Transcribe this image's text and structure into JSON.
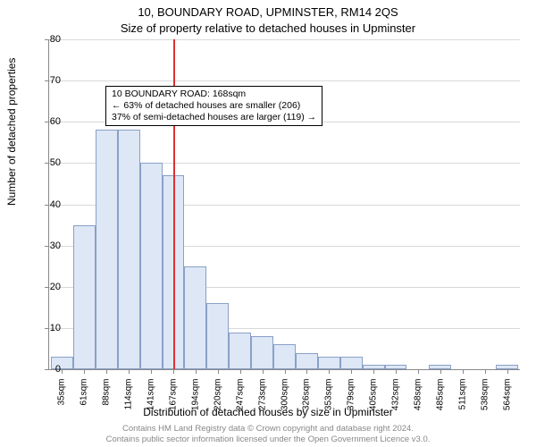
{
  "title_line1": "10, BOUNDARY ROAD, UPMINSTER, RM14 2QS",
  "title_line2": "Size of property relative to detached houses in Upminster",
  "ylabel": "Number of detached properties",
  "xlabel": "Distribution of detached houses by size in Upminster",
  "footer_line1": "Contains HM Land Registry data © Crown copyright and database right 2024.",
  "footer_line2": "Contains public sector information licensed under the Open Government Licence v3.0.",
  "annotation": {
    "line1": "10 BOUNDARY ROAD: 168sqm",
    "line2": "← 63% of detached houses are smaller (206)",
    "line3": "37% of semi-detached houses are larger (119) →"
  },
  "chart": {
    "type": "histogram",
    "ylim": [
      0,
      80
    ],
    "yticks": [
      0,
      10,
      20,
      30,
      40,
      50,
      60,
      70,
      80
    ],
    "xcategories": [
      "35sqm",
      "61sqm",
      "88sqm",
      "114sqm",
      "141sqm",
      "167sqm",
      "194sqm",
      "220sqm",
      "247sqm",
      "273sqm",
      "300sqm",
      "326sqm",
      "353sqm",
      "379sqm",
      "405sqm",
      "432sqm",
      "458sqm",
      "485sqm",
      "511sqm",
      "538sqm",
      "564sqm"
    ],
    "values": [
      3,
      35,
      58,
      58,
      50,
      47,
      25,
      16,
      9,
      8,
      6,
      4,
      3,
      3,
      1,
      1,
      0,
      1,
      0,
      0,
      1
    ],
    "bar_fill": "#dde7f6",
    "bar_stroke": "#8aa0c7",
    "grid_color": "#d9d9d9",
    "axis_color": "#888888",
    "reference_line_value": 168,
    "reference_line_color": "#e03030",
    "x_bin_start": 22,
    "x_bin_width": 26.5,
    "background": "#ffffff",
    "tick_fontsize": 11,
    "label_fontsize": 12,
    "title_fontsize": 13
  }
}
